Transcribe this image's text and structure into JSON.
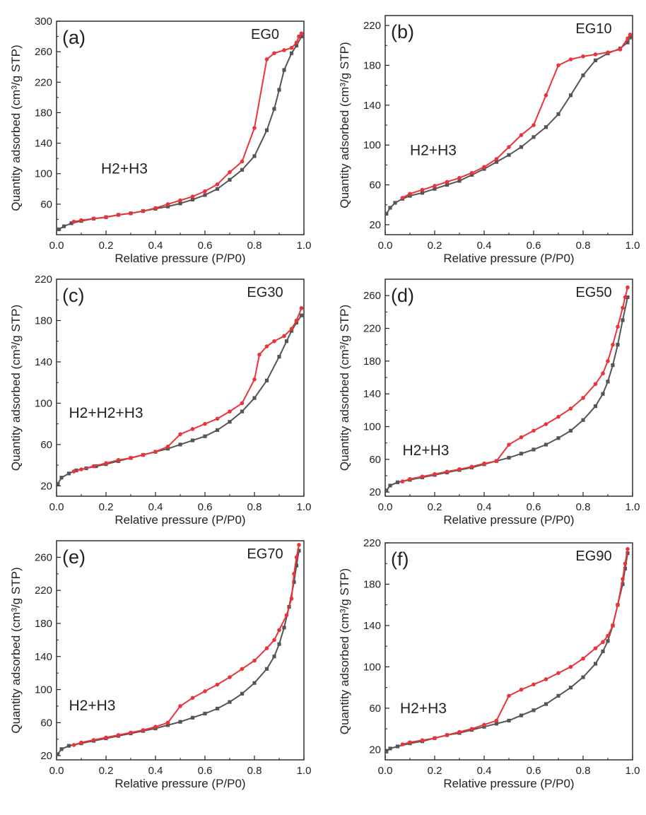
{
  "colors": {
    "adsorption": "#555555",
    "desorption": "#e8343a",
    "frame": "#222222"
  },
  "chart_data": [
    {
      "type": "line",
      "panel_label": "(a)",
      "sample_label": "EG0",
      "annotation": "H2+H3",
      "xlabel": "Relative pressure (P/P0)",
      "ylabel": "Quantity adsorbed (cm³/g STP)",
      "xlim": [
        0,
        1.0
      ],
      "ylim": [
        20,
        300
      ],
      "xticks": [
        "0.0",
        "0.2",
        "0.4",
        "0.6",
        "0.8",
        "1.0"
      ],
      "yticks": [
        "60",
        "100",
        "140",
        "180",
        "220",
        "260",
        "300"
      ],
      "series": [
        {
          "role": "adsorption",
          "x": [
            0.01,
            0.03,
            0.06,
            0.1,
            0.15,
            0.2,
            0.25,
            0.3,
            0.35,
            0.4,
            0.45,
            0.5,
            0.55,
            0.6,
            0.65,
            0.7,
            0.75,
            0.8,
            0.85,
            0.88,
            0.9,
            0.92,
            0.95,
            0.97,
            0.99
          ],
          "y": [
            27,
            31,
            35,
            38,
            41,
            43,
            46,
            48,
            51,
            54,
            57,
            61,
            66,
            72,
            80,
            92,
            105,
            123,
            157,
            185,
            210,
            236,
            258,
            268,
            280
          ]
        },
        {
          "role": "desorption",
          "x": [
            0.99,
            0.98,
            0.97,
            0.95,
            0.92,
            0.88,
            0.85,
            0.8,
            0.75,
            0.7,
            0.65,
            0.6,
            0.55,
            0.5,
            0.45,
            0.4,
            0.35,
            0.3,
            0.25,
            0.2,
            0.15,
            0.1,
            0.07
          ],
          "y": [
            284,
            280,
            272,
            265,
            262,
            258,
            250,
            160,
            116,
            102,
            86,
            77,
            70,
            65,
            60,
            55,
            51,
            48,
            46,
            43,
            41,
            39,
            37
          ]
        }
      ]
    },
    {
      "type": "line",
      "panel_label": "(b)",
      "sample_label": "EG10",
      "annotation": "H2+H3",
      "xlabel": "Relative pressure (P/P0)",
      "ylabel": "Quantity adsorbed (cm³/g STP)",
      "xlim": [
        0,
        1.0
      ],
      "ylim": [
        10,
        230
      ],
      "xticks": [
        "0.0",
        "0.2",
        "0.4",
        "0.6",
        "0.8",
        "1.0"
      ],
      "yticks": [
        "20",
        "60",
        "100",
        "140",
        "180",
        "220"
      ],
      "series": [
        {
          "role": "adsorption",
          "x": [
            0.005,
            0.02,
            0.04,
            0.07,
            0.1,
            0.15,
            0.2,
            0.25,
            0.3,
            0.35,
            0.4,
            0.45,
            0.5,
            0.55,
            0.6,
            0.65,
            0.7,
            0.75,
            0.8,
            0.85,
            0.9,
            0.95,
            0.98,
            0.99
          ],
          "y": [
            31,
            37,
            42,
            46,
            49,
            52,
            56,
            60,
            64,
            70,
            76,
            83,
            90,
            98,
            108,
            118,
            131,
            150,
            170,
            185,
            192,
            197,
            203,
            208
          ]
        },
        {
          "role": "desorption",
          "x": [
            0.99,
            0.98,
            0.95,
            0.9,
            0.85,
            0.8,
            0.75,
            0.7,
            0.65,
            0.6,
            0.55,
            0.5,
            0.45,
            0.4,
            0.35,
            0.3,
            0.25,
            0.2,
            0.15,
            0.1,
            0.07
          ],
          "y": [
            211,
            207,
            196,
            193,
            191,
            189,
            186,
            180,
            150,
            120,
            110,
            98,
            86,
            78,
            72,
            67,
            63,
            59,
            55,
            51,
            47
          ]
        }
      ]
    },
    {
      "type": "line",
      "panel_label": "(c)",
      "sample_label": "EG30",
      "annotation": "H2+H2+H3",
      "xlabel": "Relative pressure (P/P0)",
      "ylabel": "Quantity adsorbed (cm³/g STP)",
      "xlim": [
        0,
        1.0
      ],
      "ylim": [
        10,
        220
      ],
      "xticks": [
        "0.0",
        "0.2",
        "0.4",
        "0.6",
        "0.8",
        "1.0"
      ],
      "yticks": [
        "20",
        "60",
        "100",
        "140",
        "180",
        "220"
      ],
      "series": [
        {
          "role": "adsorption",
          "x": [
            0.005,
            0.02,
            0.05,
            0.08,
            0.12,
            0.16,
            0.2,
            0.25,
            0.3,
            0.35,
            0.4,
            0.45,
            0.5,
            0.55,
            0.6,
            0.65,
            0.7,
            0.75,
            0.8,
            0.85,
            0.9,
            0.93,
            0.95,
            0.97,
            0.99
          ],
          "y": [
            22,
            28,
            32,
            35,
            37,
            39,
            41,
            44,
            47,
            50,
            53,
            56,
            60,
            64,
            68,
            74,
            82,
            92,
            105,
            122,
            145,
            160,
            170,
            178,
            185
          ]
        },
        {
          "role": "desorption",
          "x": [
            0.99,
            0.97,
            0.95,
            0.92,
            0.88,
            0.85,
            0.82,
            0.8,
            0.75,
            0.7,
            0.65,
            0.6,
            0.55,
            0.5,
            0.45,
            0.4,
            0.35,
            0.3,
            0.25,
            0.2,
            0.15,
            0.1,
            0.07
          ],
          "y": [
            192,
            180,
            172,
            165,
            160,
            155,
            147,
            123,
            100,
            92,
            85,
            80,
            75,
            70,
            58,
            53,
            50,
            47,
            45,
            42,
            39,
            36,
            34
          ]
        }
      ]
    },
    {
      "type": "line",
      "panel_label": "(d)",
      "sample_label": "EG50",
      "annotation": "H2+H3",
      "xlabel": "Relative pressure (P/P0)",
      "ylabel": "Quantity adsorbed (cm³/g STP)",
      "xlim": [
        0,
        1.0
      ],
      "ylim": [
        15,
        280
      ],
      "xticks": [
        "0.0",
        "0.2",
        "0.4",
        "0.6",
        "0.8",
        "1.0"
      ],
      "yticks": [
        "20",
        "60",
        "100",
        "140",
        "180",
        "220",
        "260"
      ],
      "series": [
        {
          "role": "adsorption",
          "x": [
            0.005,
            0.02,
            0.05,
            0.1,
            0.15,
            0.2,
            0.25,
            0.3,
            0.35,
            0.4,
            0.45,
            0.5,
            0.55,
            0.6,
            0.65,
            0.7,
            0.75,
            0.8,
            0.85,
            0.88,
            0.9,
            0.92,
            0.94,
            0.96,
            0.98
          ],
          "y": [
            22,
            28,
            32,
            35,
            38,
            41,
            44,
            47,
            50,
            54,
            58,
            62,
            67,
            72,
            78,
            86,
            95,
            108,
            125,
            140,
            155,
            175,
            200,
            230,
            258
          ]
        },
        {
          "role": "desorption",
          "x": [
            0.98,
            0.97,
            0.96,
            0.94,
            0.92,
            0.9,
            0.88,
            0.85,
            0.8,
            0.75,
            0.7,
            0.65,
            0.6,
            0.55,
            0.5,
            0.45,
            0.4,
            0.35,
            0.3,
            0.25,
            0.2,
            0.15,
            0.1,
            0.07
          ],
          "y": [
            270,
            258,
            245,
            222,
            200,
            180,
            165,
            152,
            135,
            122,
            112,
            103,
            95,
            87,
            78,
            58,
            55,
            51,
            48,
            45,
            42,
            39,
            36,
            33
          ]
        }
      ]
    },
    {
      "type": "line",
      "panel_label": "(e)",
      "sample_label": "EG70",
      "annotation": "H2+H3",
      "xlabel": "Relative pressure (P/P0)",
      "ylabel": "Quantity adsorbed (cm³/g STP)",
      "xlim": [
        0,
        1.0
      ],
      "ylim": [
        15,
        280
      ],
      "xticks": [
        "0.0",
        "0.2",
        "0.4",
        "0.6",
        "0.8",
        "1.0"
      ],
      "yticks": [
        "20",
        "60",
        "100",
        "140",
        "180",
        "220",
        "260"
      ],
      "series": [
        {
          "role": "adsorption",
          "x": [
            0.005,
            0.02,
            0.05,
            0.1,
            0.15,
            0.2,
            0.25,
            0.3,
            0.35,
            0.4,
            0.45,
            0.5,
            0.55,
            0.6,
            0.65,
            0.7,
            0.75,
            0.8,
            0.85,
            0.88,
            0.9,
            0.92,
            0.94,
            0.96,
            0.97,
            0.98
          ],
          "y": [
            22,
            28,
            32,
            35,
            38,
            41,
            44,
            47,
            50,
            53,
            57,
            61,
            66,
            71,
            77,
            85,
            95,
            108,
            125,
            140,
            155,
            175,
            200,
            230,
            250,
            268
          ]
        },
        {
          "role": "desorption",
          "x": [
            0.98,
            0.97,
            0.96,
            0.95,
            0.93,
            0.9,
            0.88,
            0.85,
            0.8,
            0.75,
            0.7,
            0.65,
            0.6,
            0.55,
            0.5,
            0.45,
            0.4,
            0.35,
            0.3,
            0.25,
            0.2,
            0.15,
            0.1,
            0.07
          ],
          "y": [
            275,
            260,
            240,
            210,
            190,
            172,
            160,
            150,
            135,
            125,
            115,
            106,
            98,
            90,
            80,
            60,
            55,
            51,
            48,
            45,
            42,
            39,
            36,
            33
          ]
        }
      ]
    },
    {
      "type": "line",
      "panel_label": "(f)",
      "sample_label": "EG90",
      "annotation": "H2+H3",
      "xlabel": "Relative pressure (P/P0)",
      "ylabel": "Quantity adsorbed (cm³/g STP)",
      "xlim": [
        0,
        1.0
      ],
      "ylim": [
        10,
        220
      ],
      "xticks": [
        "0.0",
        "0.2",
        "0.4",
        "0.6",
        "0.8",
        "1.0"
      ],
      "yticks": [
        "20",
        "60",
        "100",
        "140",
        "180",
        "220"
      ],
      "series": [
        {
          "role": "adsorption",
          "x": [
            0.005,
            0.02,
            0.05,
            0.1,
            0.15,
            0.2,
            0.25,
            0.3,
            0.35,
            0.4,
            0.45,
            0.5,
            0.55,
            0.6,
            0.65,
            0.7,
            0.75,
            0.8,
            0.85,
            0.88,
            0.9,
            0.92,
            0.94,
            0.96,
            0.97,
            0.98
          ],
          "y": [
            18,
            21,
            23,
            26,
            28,
            31,
            34,
            36,
            39,
            42,
            45,
            48,
            53,
            58,
            64,
            72,
            80,
            90,
            103,
            115,
            125,
            140,
            160,
            180,
            195,
            210
          ]
        },
        {
          "role": "desorption",
          "x": [
            0.98,
            0.97,
            0.96,
            0.94,
            0.92,
            0.9,
            0.88,
            0.85,
            0.8,
            0.75,
            0.7,
            0.65,
            0.6,
            0.55,
            0.5,
            0.45,
            0.4,
            0.35,
            0.3,
            0.25,
            0.2,
            0.15,
            0.1,
            0.07
          ],
          "y": [
            214,
            200,
            185,
            160,
            140,
            130,
            124,
            118,
            108,
            100,
            94,
            88,
            83,
            78,
            72,
            48,
            44,
            40,
            37,
            34,
            31,
            29,
            27,
            25
          ]
        }
      ]
    }
  ]
}
